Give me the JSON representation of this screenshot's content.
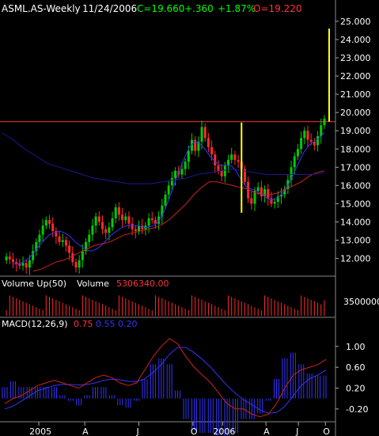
{
  "header": {
    "symbol": "ASML.AS-Weekly",
    "date": "11/24/2006",
    "close": "C=19.660",
    "change": "+.360",
    "change_pct": "+1.87%",
    "open": "O=19.220"
  },
  "volume_panel": {
    "label": "Volume Up(50)",
    "value_label": "Volume",
    "value": "5306340.00",
    "tick": "3500000"
  },
  "macd_panel": {
    "label": "MACD(12,26,9)",
    "v1": "0.75",
    "v2": "0.55",
    "v3": "0.20",
    "ticks": [
      "1.00",
      "0.60",
      "0.20",
      "-0.20"
    ]
  },
  "colors": {
    "up": "#00cc00",
    "down": "#ff2a2a",
    "ma_fast": "#3333ff",
    "ma_mid": "#1a1a90",
    "ma_slow": "#cc2222",
    "resistance": "#ff3333",
    "marker": "#ffff00",
    "grid": "#555555",
    "text": "#ffffff"
  },
  "chart_data": {
    "type": "candlestick",
    "interval": "weekly",
    "symbol": "ASML.AS",
    "price_ticks": [
      "25.000",
      "24.000",
      "23.000",
      "22.000",
      "21.000",
      "20.000",
      "19.000",
      "18.000",
      "17.000",
      "16.000",
      "15.000",
      "14.000",
      "13.000",
      "12.000"
    ],
    "x_ticks": [
      "2005",
      "A",
      "J",
      "O",
      "2006",
      "A",
      "J",
      "O"
    ],
    "ylim": [
      11.2,
      25.3
    ],
    "resistance_level": 19.5,
    "closes": [
      12.1,
      11.95,
      11.8,
      11.7,
      11.6,
      11.75,
      11.5,
      11.9,
      12.4,
      12.9,
      13.3,
      13.8,
      14.1,
      13.9,
      13.5,
      13.2,
      12.9,
      13.0,
      12.7,
      12.3,
      11.8,
      11.5,
      11.9,
      12.4,
      12.9,
      13.3,
      13.8,
      14.3,
      14.0,
      13.6,
      13.4,
      13.7,
      14.2,
      14.8,
      14.4,
      14.1,
      14.3,
      13.9,
      13.6,
      13.5,
      13.8,
      13.6,
      13.8,
      14.2,
      14.1,
      13.9,
      14.3,
      14.9,
      15.5,
      16.0,
      16.4,
      16.8,
      16.6,
      16.9,
      17.3,
      17.9,
      18.5,
      17.9,
      18.4,
      19.2,
      18.6,
      18.1,
      17.7,
      17.1,
      16.8,
      16.5,
      17.1,
      17.4,
      17.7,
      17.4,
      17.3,
      16.9,
      16.2,
      15.3,
      15.0,
      15.7,
      15.9,
      15.4,
      15.8,
      15.3,
      15.0,
      15.1,
      15.4,
      15.5,
      15.8,
      16.3,
      17.0,
      17.6,
      18.0,
      18.6,
      19.0,
      18.5,
      18.4,
      18.2,
      18.7,
      19.3,
      19.66
    ],
    "opens_note": "open of each week equals prior close; last week open shown in header",
    "ma_fast": [
      11.7,
      11.7,
      11.8,
      12.0,
      12.3,
      12.7,
      13.0,
      13.3,
      13.4,
      13.5,
      13.4,
      13.2,
      12.9,
      12.7,
      12.5,
      12.4,
      12.5,
      12.7,
      13.0,
      13.3,
      13.5,
      13.7,
      13.8,
      13.8,
      13.8,
      13.7,
      13.7,
      13.8,
      14.0,
      14.5,
      15.2,
      16.0,
      16.8,
      17.5,
      18.1,
      18.4,
      18.3,
      18.0,
      17.6,
      17.3,
      17.1,
      17.1,
      17.1,
      16.8,
      16.3,
      15.9,
      15.8,
      15.7,
      15.5,
      15.3,
      15.2,
      15.3,
      15.6,
      16.0,
      16.6,
      17.2,
      17.8,
      18.2,
      18.4,
      18.6,
      18.9
    ],
    "ma_slow": [
      11.3,
      11.4,
      11.6,
      11.8,
      11.9,
      12.1,
      12.3,
      12.5,
      12.7,
      12.8,
      12.9,
      13.1,
      13.3,
      13.4,
      13.5,
      13.6,
      13.7,
      13.9,
      14.2,
      14.6,
      15.0,
      15.5,
      15.9,
      16.2,
      16.2,
      16.1,
      16.0,
      15.9,
      15.8,
      15.6,
      15.5,
      15.5,
      15.6,
      15.8,
      16.0,
      16.2,
      16.5,
      16.7,
      16.8
    ],
    "ma_mid": [
      18.9,
      18.5,
      18.0,
      17.6,
      17.2,
      17.0,
      16.8,
      16.6,
      16.4,
      16.3,
      16.2,
      16.1,
      16.1,
      16.1,
      16.2,
      16.3,
      16.4,
      16.6,
      16.7,
      16.8,
      16.9,
      16.8,
      16.7,
      16.6,
      16.6,
      16.6,
      16.6,
      16.6,
      16.7
    ],
    "macd": {
      "series": [
        {
          "name": "MACD",
          "values": [
            -0.1,
            0.0,
            0.05,
            0.15,
            0.25,
            0.3,
            0.35,
            0.3,
            0.25,
            0.2,
            0.3,
            0.4,
            0.45,
            0.4,
            0.3,
            0.25,
            0.3,
            0.55,
            0.8,
            1.0,
            1.15,
            1.05,
            0.8,
            0.6,
            0.45,
            0.3,
            0.1,
            -0.1,
            -0.2,
            -0.2,
            -0.3,
            -0.35,
            -0.3,
            -0.1,
            0.2,
            0.45,
            0.55,
            0.6,
            0.65,
            0.75
          ]
        },
        {
          "name": "Signal",
          "values": [
            -0.2,
            -0.15,
            -0.05,
            0.05,
            0.15,
            0.2,
            0.25,
            0.27,
            0.27,
            0.26,
            0.27,
            0.3,
            0.35,
            0.37,
            0.36,
            0.33,
            0.32,
            0.38,
            0.5,
            0.65,
            0.85,
            0.98,
            0.98,
            0.88,
            0.75,
            0.6,
            0.42,
            0.25,
            0.1,
            -0.02,
            -0.12,
            -0.22,
            -0.28,
            -0.27,
            -0.15,
            0.05,
            0.25,
            0.38,
            0.45,
            0.55
          ]
        }
      ],
      "ylim": [
        -0.4,
        1.3
      ]
    },
    "volume_ylim": [
      0,
      6000000
    ]
  }
}
